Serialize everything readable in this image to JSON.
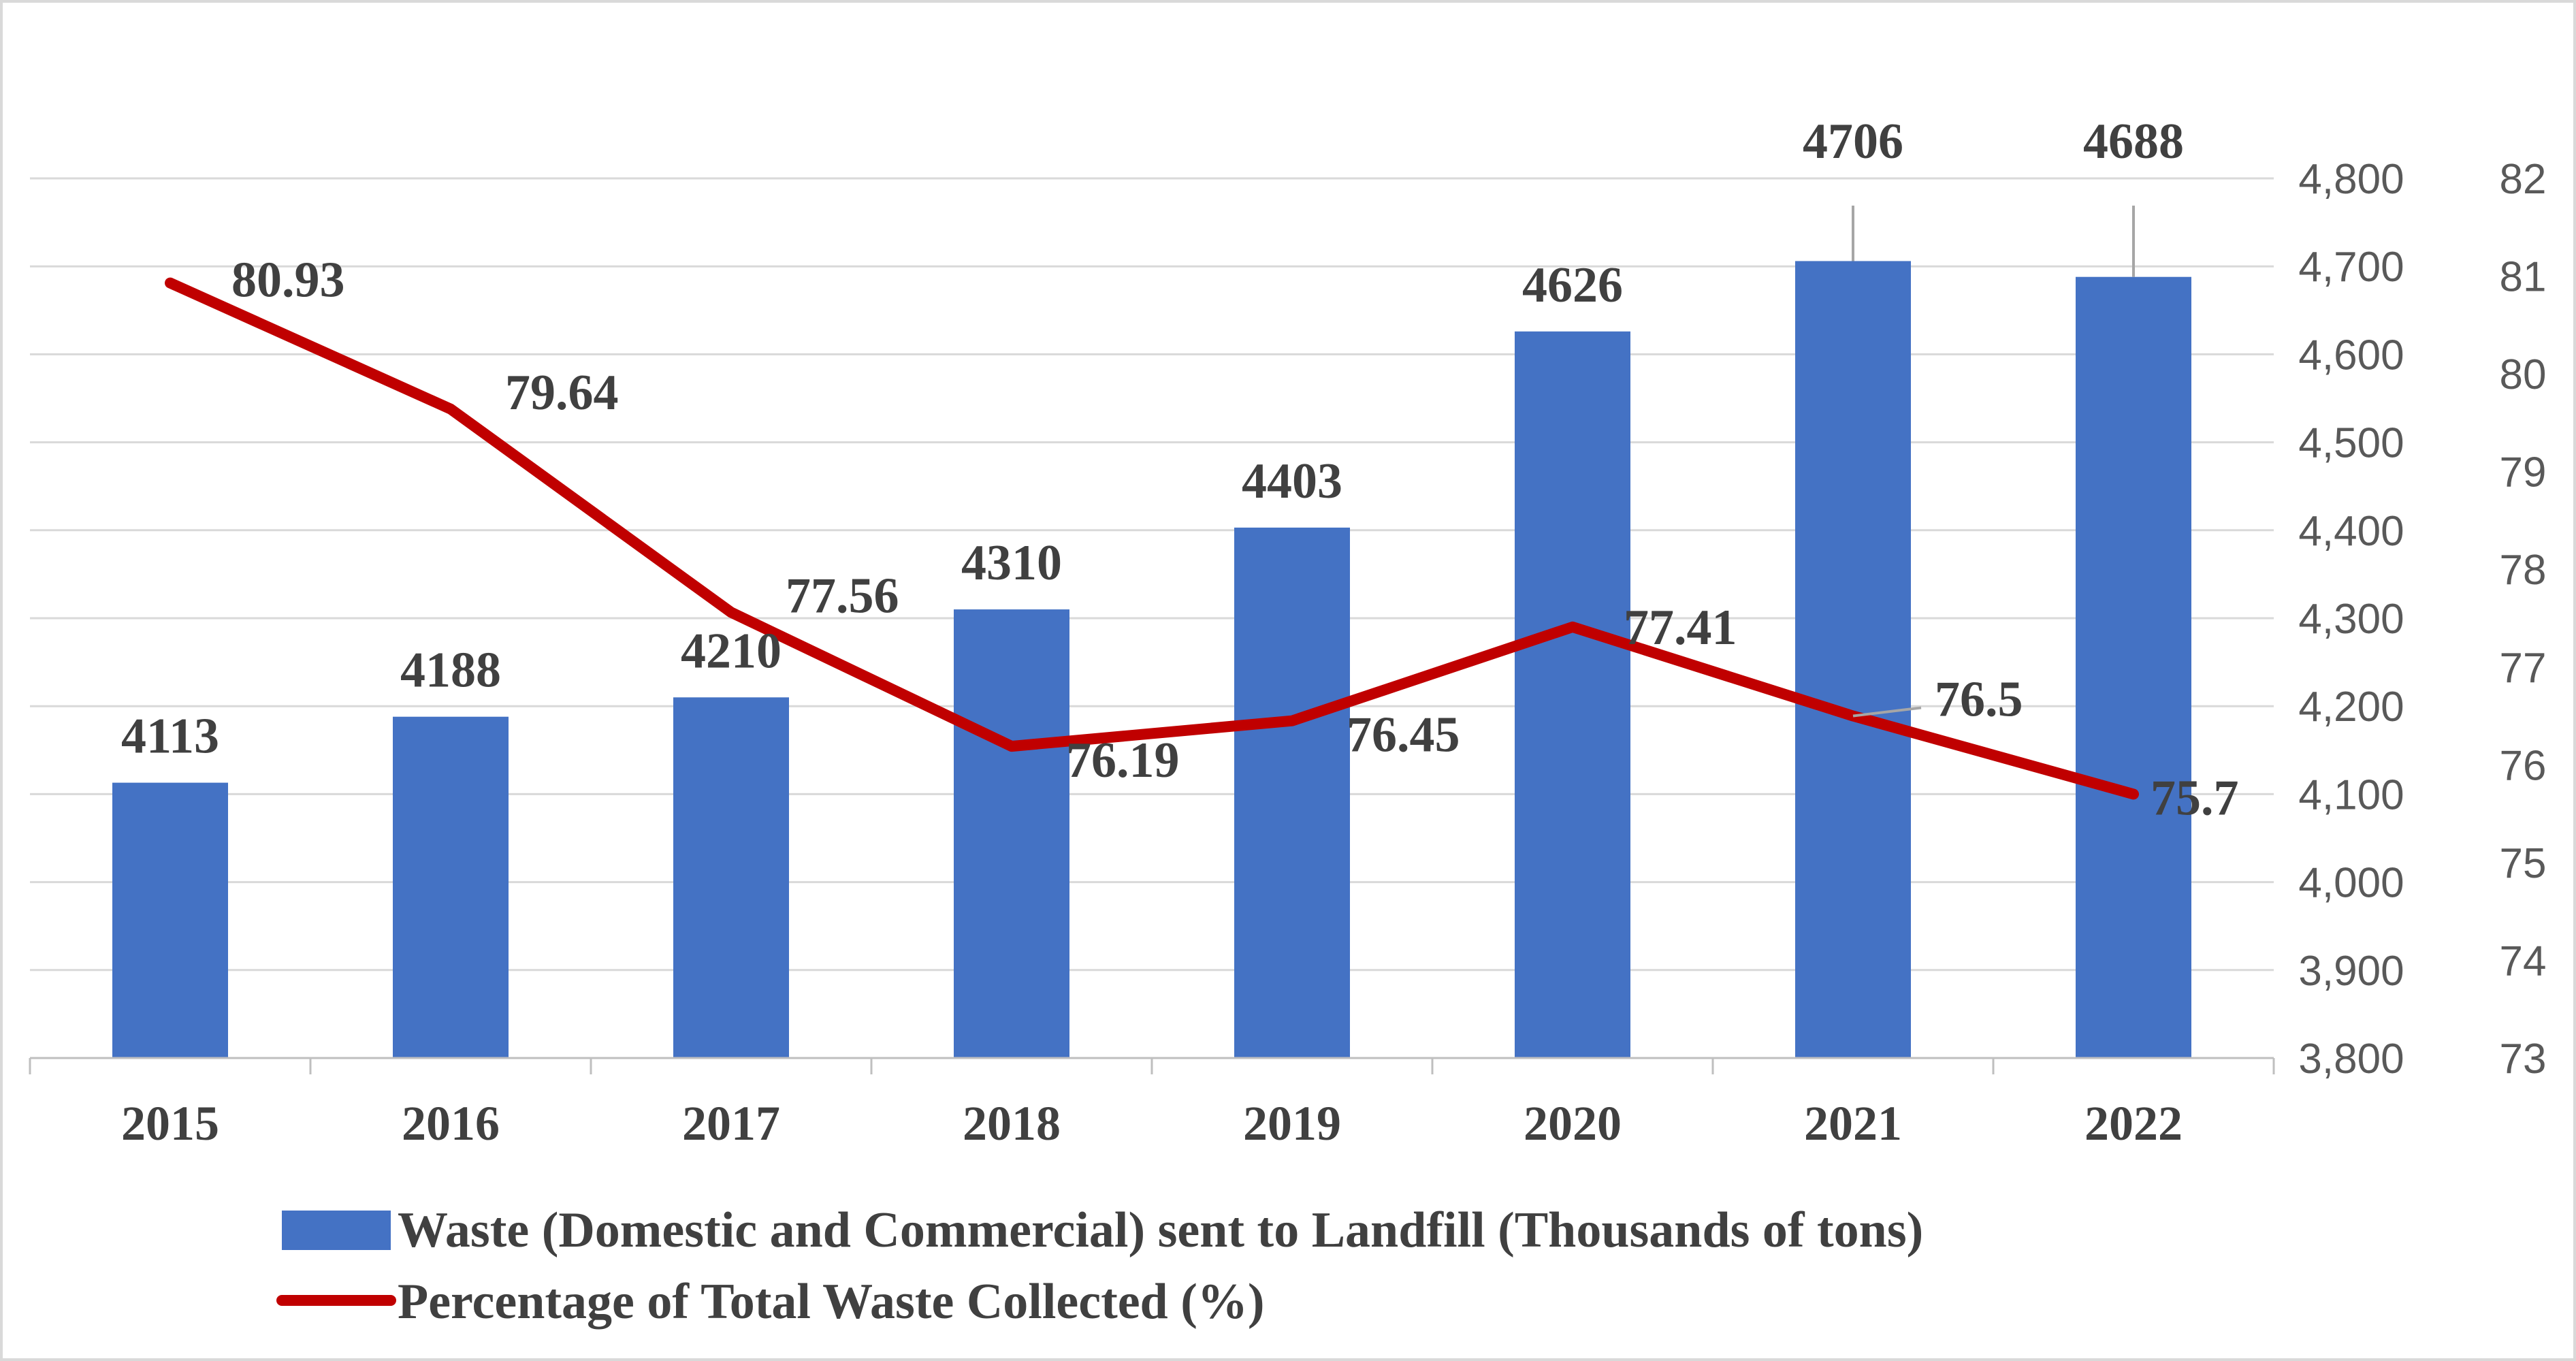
{
  "chart_data": {
    "type": "bar+line",
    "title": "",
    "categories": [
      "2015",
      "2016",
      "2017",
      "2018",
      "2019",
      "2020",
      "2021",
      "2022"
    ],
    "series": [
      {
        "name": "Waste (Domestic and Commercial) sent to Landfill (Thousands of tons)",
        "type": "bar",
        "axis": "primary",
        "color": "#4472c4",
        "values": [
          4113,
          4188,
          4210,
          4310,
          4403,
          4626,
          4706,
          4688
        ],
        "labels": [
          "4113",
          "4188",
          "4210",
          "4310",
          "4403",
          "4626",
          "4706",
          "4688"
        ]
      },
      {
        "name": "Percentage of  Total Waste Collected (%)",
        "type": "line",
        "axis": "secondary",
        "color": "#c00000",
        "values": [
          80.93,
          79.64,
          77.56,
          76.19,
          76.45,
          77.41,
          76.5,
          75.7
        ],
        "labels": [
          "80.93",
          "79.64",
          "77.56",
          "76.19",
          "76.45",
          "77.41",
          "76.5",
          "75.7"
        ]
      }
    ],
    "y_primary": {
      "ylim": [
        3800,
        4800
      ],
      "ticks": [
        3800,
        3900,
        4000,
        4100,
        4200,
        4300,
        4400,
        4500,
        4600,
        4700,
        4800
      ],
      "tick_labels": [
        "3,800",
        "3,900",
        "4,000",
        "4,100",
        "4,200",
        "4,300",
        "4,400",
        "4,500",
        "4,600",
        "4,700",
        "4,800"
      ]
    },
    "y_secondary": {
      "ylim": [
        73,
        82
      ],
      "ticks": [
        73,
        74,
        75,
        76,
        77,
        78,
        79,
        80,
        81,
        82
      ],
      "tick_labels": [
        "73",
        "74",
        "75",
        "76",
        "77",
        "78",
        "79",
        "80",
        "81",
        "82"
      ]
    },
    "grid": true,
    "legend": "bottom"
  }
}
